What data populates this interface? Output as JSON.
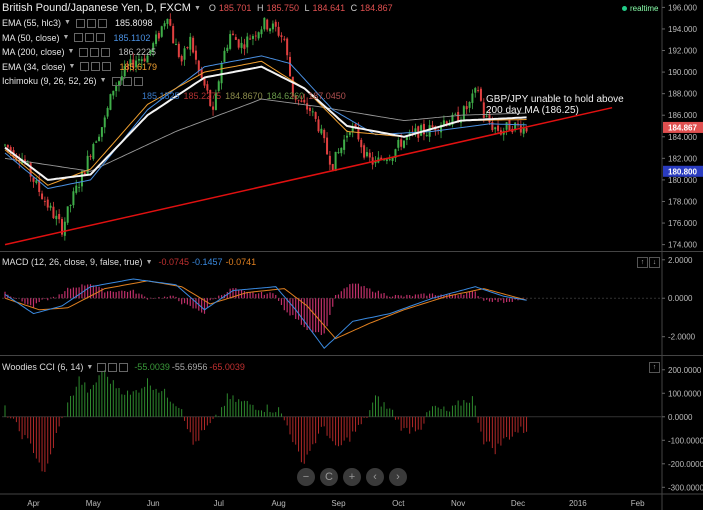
{
  "title": {
    "symbol": "British Pound/Japanese Yen, D, FXCM",
    "o_label": "O",
    "o": "185.701",
    "h_label": "H",
    "h": "185.750",
    "l_label": "L",
    "l": "184.641",
    "c_label": "C",
    "c": "184.867",
    "realtime": "realtime"
  },
  "indicators": [
    {
      "label": "EMA (55, hlc3)",
      "value": "185.8098",
      "color": "#e8e8e8"
    },
    {
      "label": "MA (50, close)",
      "value": "185.1102",
      "color": "#4a90e2"
    },
    {
      "label": "MA (200, close)",
      "value": "186.2225",
      "color": "#bbbbbb"
    },
    {
      "label": "EMA (34, close)",
      "value": "185.6179",
      "color": "#f0a030"
    },
    {
      "label": "Ichimoku (9, 26, 52, 26)",
      "values": [
        "185.1525",
        "185.2275",
        "184.8670",
        "184.6260",
        "187.0450"
      ],
      "colors": [
        "#3a7ac8",
        "#b03030",
        "#8a8a4a",
        "#6a9a4a",
        "#b05050"
      ]
    }
  ],
  "annotation": {
    "line1": "GBP/JPY unable to hold above",
    "line2": "200 day MA (186.25)"
  },
  "price_badges": [
    {
      "value": "184.867",
      "bg": "#e05050"
    },
    {
      "value": "180.800",
      "bg": "#2a3cc0"
    }
  ],
  "macd": {
    "label": "MACD (12, 26, close, 9, false, true)",
    "v1": "-0.0745",
    "v2": "-0.1457",
    "v3": "-0.0741",
    "c1": "#c03030",
    "c2": "#3a8ae0",
    "c3": "#e08020"
  },
  "cci": {
    "label": "Woodies CCI (6, 14)",
    "v1": "-55.0039",
    "v2": "-55.6956",
    "v3": "-65.0039",
    "c1": "#3a9a3a",
    "c2": "#aaaaaa",
    "c3": "#c03030"
  },
  "nav": {
    "zoom_out": "−",
    "reset": "C",
    "zoom_in": "+",
    "back": "‹",
    "forward": "›"
  },
  "chart_data": {
    "type": "candlestick",
    "x_ticks": [
      "Apr",
      "May",
      "Jun",
      "Jul",
      "Aug",
      "Sep",
      "Oct",
      "Nov",
      "Dec",
      "2016",
      "Feb"
    ],
    "price_axis": {
      "ticks": [
        "196.000",
        "194.000",
        "192.000",
        "190.000",
        "188.000",
        "186.000",
        "184.000",
        "182.000",
        "180.000",
        "178.000",
        "176.000",
        "174.000"
      ],
      "ylim": [
        173.5,
        196.5
      ]
    },
    "macd_axis": {
      "ticks": [
        "2.0000",
        "0.0000",
        "-2.0000"
      ],
      "ylim": [
        -2.9,
        2.3
      ]
    },
    "cci_axis": {
      "ticks": [
        "200.0000",
        "100.0000",
        "0.0000",
        "-100.0000",
        "-200.0000",
        "-300.0000"
      ],
      "ylim": [
        -320,
        250
      ]
    },
    "trendline": {
      "from": [
        0,
        174.0
      ],
      "to": [
        206,
        186.7
      ],
      "color": "#e01010"
    },
    "price_keyframes": [
      [
        0,
        183.2
      ],
      [
        6,
        182.0
      ],
      [
        12,
        179.0
      ],
      [
        16,
        177.2
      ],
      [
        20,
        175.5
      ],
      [
        24,
        178.5
      ],
      [
        28,
        181.0
      ],
      [
        31,
        183.5
      ],
      [
        35,
        185.5
      ],
      [
        38,
        188.5
      ],
      [
        42,
        190.0
      ],
      [
        46,
        191.2
      ],
      [
        50,
        191.5
      ],
      [
        54,
        193.5
      ],
      [
        57,
        195.5
      ],
      [
        59,
        193.0
      ],
      [
        62,
        191.0
      ],
      [
        65,
        193.0
      ],
      [
        68,
        190.0
      ],
      [
        71,
        188.0
      ],
      [
        73,
        186.0
      ],
      [
        76,
        191.0
      ],
      [
        79,
        193.5
      ],
      [
        83,
        192.5
      ],
      [
        87,
        193.5
      ],
      [
        91,
        194.5
      ],
      [
        95,
        194.0
      ],
      [
        98,
        193.0
      ],
      [
        101,
        188.0
      ],
      [
        104,
        187.0
      ],
      [
        107,
        186.5
      ],
      [
        110,
        185.0
      ],
      [
        113,
        182.5
      ],
      [
        115,
        181.5
      ],
      [
        118,
        183.0
      ],
      [
        121,
        185.0
      ],
      [
        124,
        184.0
      ],
      [
        127,
        182.0
      ],
      [
        130,
        181.5
      ],
      [
        133,
        182.2
      ],
      [
        136,
        182.5
      ],
      [
        139,
        183.5
      ],
      [
        142,
        184.0
      ],
      [
        145,
        184.5
      ],
      [
        148,
        184.5
      ],
      [
        151,
        185.0
      ],
      [
        154,
        185.5
      ],
      [
        157,
        185.5
      ],
      [
        160,
        186.0
      ],
      [
        163,
        187.0
      ],
      [
        166,
        188.5
      ],
      [
        168,
        186.0
      ],
      [
        171,
        185.0
      ],
      [
        174,
        184.5
      ],
      [
        177,
        185.0
      ],
      [
        180,
        185.0
      ],
      [
        183,
        184.8
      ]
    ],
    "ema55_keyframes": [
      [
        0,
        183.0
      ],
      [
        15,
        180.0
      ],
      [
        30,
        180.5
      ],
      [
        50,
        186.0
      ],
      [
        70,
        189.5
      ],
      [
        90,
        190.5
      ],
      [
        105,
        188.5
      ],
      [
        120,
        185.0
      ],
      [
        140,
        184.0
      ],
      [
        160,
        185.5
      ],
      [
        183,
        185.8
      ]
    ],
    "ma50_keyframes": [
      [
        0,
        182.5
      ],
      [
        15,
        179.2
      ],
      [
        30,
        180.0
      ],
      [
        50,
        186.5
      ],
      [
        70,
        190.5
      ],
      [
        90,
        191.5
      ],
      [
        100,
        190.8
      ],
      [
        115,
        186.5
      ],
      [
        130,
        184.2
      ],
      [
        150,
        184.5
      ],
      [
        170,
        185.2
      ],
      [
        183,
        185.1
      ]
    ],
    "ma200_keyframes": [
      [
        0,
        182.0
      ],
      [
        30,
        180.8
      ],
      [
        60,
        184.5
      ],
      [
        90,
        187.5
      ],
      [
        110,
        186.8
      ],
      [
        140,
        185.5
      ],
      [
        160,
        186.0
      ],
      [
        183,
        186.2
      ]
    ],
    "ema34_keyframes": [
      [
        0,
        182.8
      ],
      [
        15,
        179.5
      ],
      [
        30,
        181.0
      ],
      [
        50,
        187.0
      ],
      [
        70,
        190.0
      ],
      [
        90,
        191.0
      ],
      [
        105,
        188.5
      ],
      [
        120,
        184.5
      ],
      [
        140,
        184.0
      ],
      [
        160,
        185.5
      ],
      [
        183,
        185.6
      ]
    ],
    "macd_keyframes": [
      [
        0,
        0.2
      ],
      [
        10,
        -0.8
      ],
      [
        20,
        -0.4
      ],
      [
        30,
        0.6
      ],
      [
        45,
        1.0
      ],
      [
        60,
        0.7
      ],
      [
        70,
        -0.6
      ],
      [
        80,
        0.4
      ],
      [
        95,
        0.6
      ],
      [
        102,
        -0.6
      ],
      [
        112,
        -2.6
      ],
      [
        122,
        -1.2
      ],
      [
        135,
        -0.8
      ],
      [
        150,
        0.0
      ],
      [
        165,
        0.6
      ],
      [
        175,
        0.1
      ],
      [
        183,
        -0.1
      ]
    ],
    "signal_keyframes": [
      [
        0,
        0.0
      ],
      [
        12,
        -0.6
      ],
      [
        22,
        -0.5
      ],
      [
        35,
        0.5
      ],
      [
        50,
        0.9
      ],
      [
        62,
        0.6
      ],
      [
        72,
        -0.3
      ],
      [
        85,
        0.3
      ],
      [
        98,
        0.5
      ],
      [
        106,
        -0.4
      ],
      [
        116,
        -2.1
      ],
      [
        128,
        -1.3
      ],
      [
        140,
        -0.6
      ],
      [
        155,
        0.1
      ],
      [
        168,
        0.5
      ],
      [
        178,
        0.1
      ],
      [
        183,
        -0.1
      ]
    ],
    "cci_keyframes": [
      [
        0,
        30
      ],
      [
        5,
        -60
      ],
      [
        10,
        -140
      ],
      [
        14,
        -250
      ],
      [
        18,
        -80
      ],
      [
        22,
        50
      ],
      [
        26,
        160
      ],
      [
        30,
        100
      ],
      [
        34,
        200
      ],
      [
        38,
        140
      ],
      [
        44,
        90
      ],
      [
        50,
        150
      ],
      [
        56,
        100
      ],
      [
        62,
        40
      ],
      [
        66,
        -120
      ],
      [
        70,
        -60
      ],
      [
        74,
        -10
      ],
      [
        78,
        80
      ],
      [
        84,
        60
      ],
      [
        90,
        40
      ],
      [
        96,
        30
      ],
      [
        100,
        -60
      ],
      [
        104,
        -200
      ],
      [
        108,
        -120
      ],
      [
        112,
        -40
      ],
      [
        116,
        -140
      ],
      [
        120,
        -100
      ],
      [
        126,
        -20
      ],
      [
        130,
        80
      ],
      [
        136,
        20
      ],
      [
        140,
        -60
      ],
      [
        146,
        -40
      ],
      [
        150,
        40
      ],
      [
        156,
        20
      ],
      [
        160,
        60
      ],
      [
        164,
        80
      ],
      [
        168,
        -100
      ],
      [
        172,
        -140
      ],
      [
        176,
        -90
      ],
      [
        180,
        -60
      ],
      [
        183,
        -55
      ]
    ]
  }
}
